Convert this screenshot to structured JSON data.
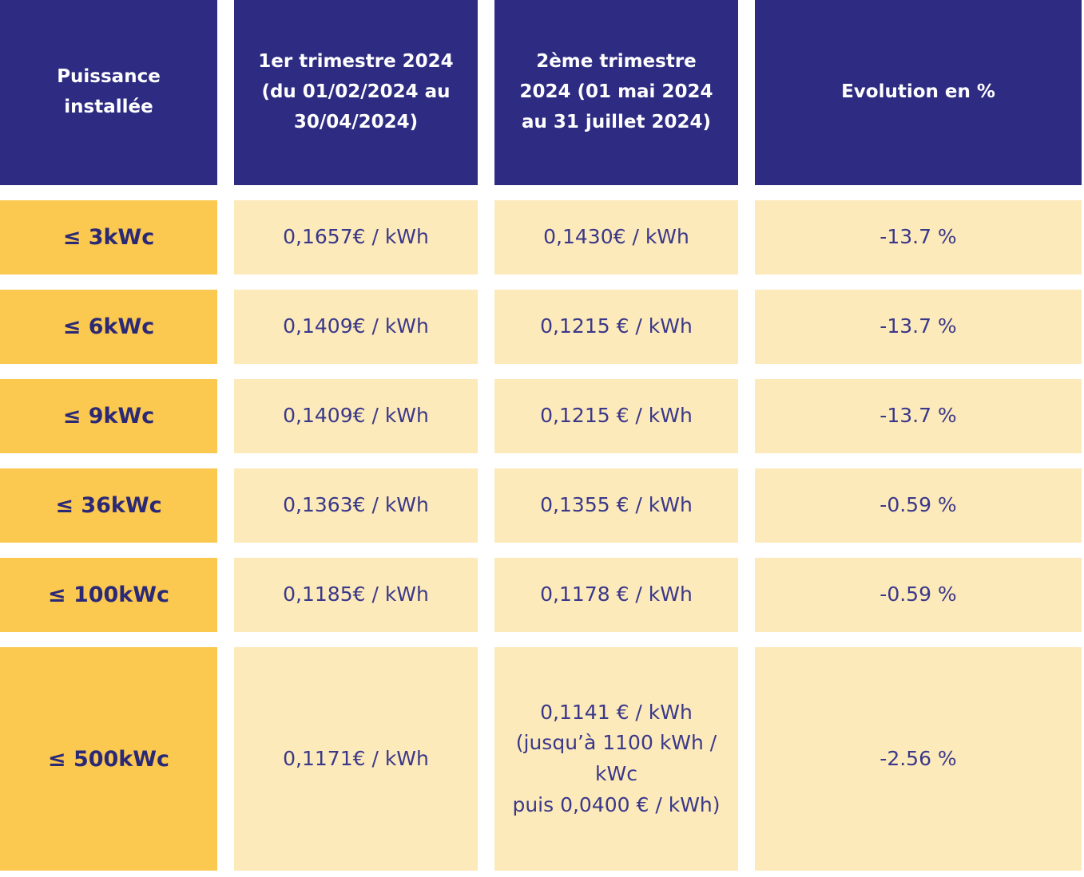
{
  "colors": {
    "header_bg": "#2D2B82",
    "header_text": "#FFFFFF",
    "row_label_bg": "#FBC850",
    "row_label_text": "#2B2976",
    "cell_bg": "#FDEABA",
    "cell_text": "#3A388A",
    "page_background": "#FFFFFF"
  },
  "chart_data": {
    "type": "table",
    "title": "",
    "columns": [
      "Puissance\ninstallée",
      "1er trimestre 2024\n(du 01/02/2024 au\n30/04/2024)",
      "2ème trimestre\n2024 (01 mai 2024\nau 31 juillet 2024)",
      "Evolution en %"
    ],
    "rows": [
      {
        "power": "≤ 3kWc",
        "q1": "0,1657€ / kWh",
        "q2": "0,1430€ / kWh",
        "evolution": "-13.7 %"
      },
      {
        "power": "≤ 6kWc",
        "q1": "0,1409€ / kWh",
        "q2": "0,1215 € / kWh",
        "evolution": "-13.7 %"
      },
      {
        "power": "≤ 9kWc",
        "q1": "0,1409€ / kWh",
        "q2": "0,1215 € / kWh",
        "evolution": "-13.7 %"
      },
      {
        "power": "≤ 36kWc",
        "q1": "0,1363€ / kWh",
        "q2": "0,1355 € / kWh",
        "evolution": "-0.59 %"
      },
      {
        "power": "≤ 100kWc",
        "q1": "0,1185€ / kWh",
        "q2": "0,1178 € / kWh",
        "evolution": "-0.59 %"
      },
      {
        "power": "≤ 500kWc",
        "q1": "0,1171€ / kWh",
        "q2": "0,1141 € / kWh\n(jusqu’à 1100 kWh /\nkWc\npuis 0,0400 € / kWh)",
        "evolution": "-2.56 %"
      }
    ]
  }
}
